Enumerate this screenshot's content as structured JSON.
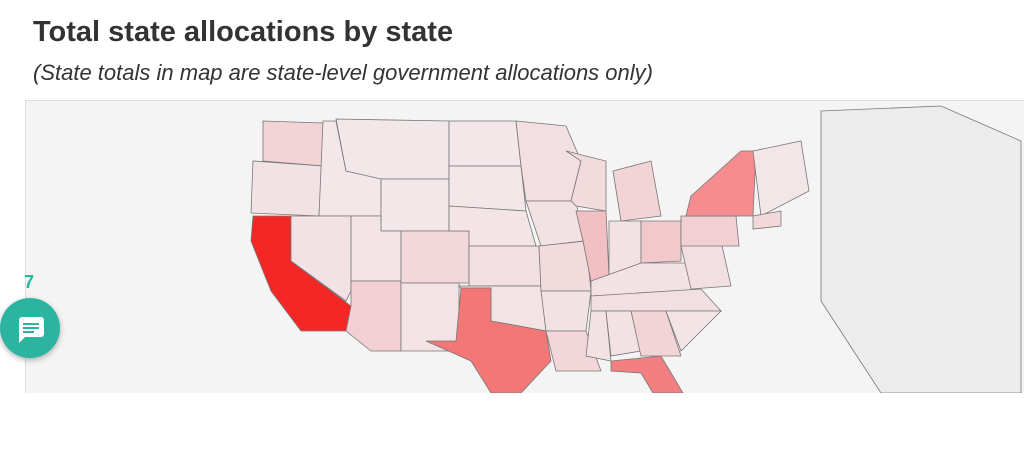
{
  "header": {
    "title": "Total state allocations by state",
    "subtitle": "(State totals in map are state-level government allocations only)"
  },
  "chat": {
    "badge": "7"
  }
}
